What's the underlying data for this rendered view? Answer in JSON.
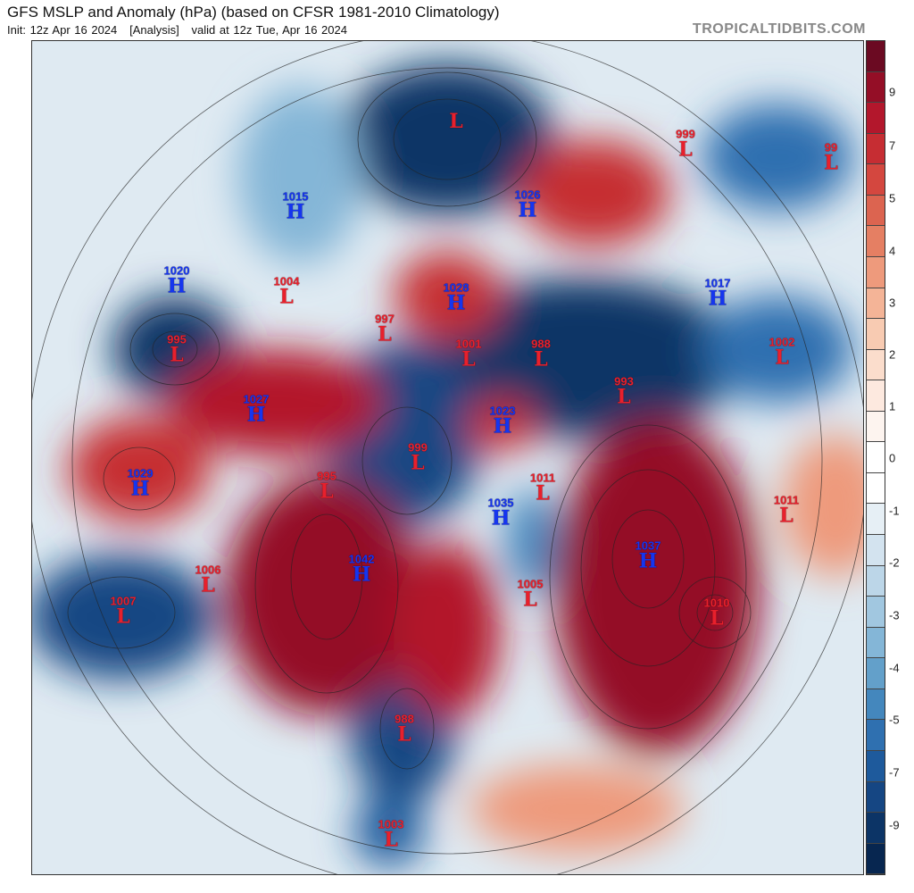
{
  "header": {
    "title": "GFS MSLP and Anomaly (hPa) (based on CFSR 1981-2010 Climatology)",
    "subtitle": "Init: 12z Apr 16 2024   [Analysis]   valid at 12z Tue, Apr 16 2024",
    "brand": "TROPICALTIDBITS.COM"
  },
  "markers": [
    {
      "value": "1015",
      "type": "H"
    },
    {
      "value": "1020",
      "type": "H"
    },
    {
      "value": "1004",
      "type": "L"
    },
    {
      "value": "995",
      "type": "L"
    },
    {
      "value": "1027",
      "type": "H"
    },
    {
      "value": "1029",
      "type": "H"
    },
    {
      "value": "997",
      "type": "L"
    },
    {
      "value": "1028",
      "type": "H"
    },
    {
      "value": "1001",
      "type": "L"
    },
    {
      "value": "988",
      "type": "L"
    },
    {
      "value": "993",
      "type": "L"
    },
    {
      "value": "1017",
      "type": "H"
    },
    {
      "value": "1002",
      "type": "L"
    },
    {
      "value": "1023",
      "type": "H"
    },
    {
      "value": "999",
      "type": "L"
    },
    {
      "value": "995",
      "type": "L"
    },
    {
      "value": "1011",
      "type": "L"
    },
    {
      "value": "1011",
      "type": "L"
    },
    {
      "value": "1035",
      "type": "H"
    },
    {
      "value": "1042",
      "type": "H"
    },
    {
      "value": "1037",
      "type": "H"
    },
    {
      "value": "1006",
      "type": "L"
    },
    {
      "value": "1007",
      "type": "L"
    },
    {
      "value": "1005",
      "type": "L"
    },
    {
      "value": "1010",
      "type": "L"
    },
    {
      "value": "988",
      "type": "L"
    },
    {
      "value": "1003",
      "type": "L"
    },
    {
      "value": "999",
      "type": "L"
    },
    {
      "value": "99",
      "type": "L"
    },
    {
      "value": "1026",
      "type": "H"
    },
    {
      "value": "",
      "type": "L"
    }
  ],
  "colorbar": {
    "ticks": [
      "9",
      "7",
      "5",
      "4",
      "3",
      "2",
      "1",
      "0",
      "-1",
      "-2",
      "-3",
      "-4",
      "-5",
      "-7",
      "-9"
    ],
    "colors": [
      "#6b0a22",
      "#940e26",
      "#b3172c",
      "#c62d33",
      "#d4473f",
      "#dc6450",
      "#e57f63",
      "#ee9a7c",
      "#f4b497",
      "#f8cbb2",
      "#fbddcc",
      "#fde9df",
      "#fdf4ef",
      "#ffffff",
      "#ffffff",
      "#e6eff5",
      "#d3e3ef",
      "#bcd6e8",
      "#a1c7e0",
      "#84b6d7",
      "#63a0ca",
      "#4487bd",
      "#2f70b0",
      "#1e5a9c",
      "#154683",
      "#0c3466",
      "#072650"
    ],
    "anomaly_red": "#b3172c",
    "anomaly_blue": "#1e5a9c"
  }
}
